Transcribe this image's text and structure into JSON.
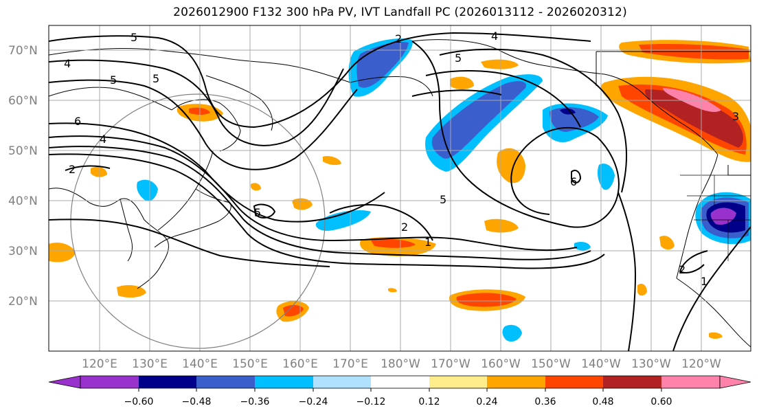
{
  "title": "2026012900 F132 300 hPa PV, IVT Landfall PC (2026013112 - 2026020312)",
  "colors": {
    "neg_060": "#9932cc",
    "neg_048": "#00008b",
    "neg_036": "#3a5fcd",
    "neg_024": "#00bfff",
    "neg_012": "#b0e2ff",
    "zero": "#ffffff",
    "pos_012": "#ffec8b",
    "pos_024": "#ffa500",
    "pos_036": "#ff4500",
    "pos_048": "#b22222",
    "pos_060": "#ff82ab",
    "contour": "#000000",
    "grid": "#a9a9a9",
    "coast": "#000000",
    "circle": "#808080"
  },
  "map": {
    "lat_labels": [
      "70°N",
      "60°N",
      "50°N",
      "40°N",
      "30°N",
      "20°N"
    ],
    "lon_labels": [
      "120°E",
      "130°E",
      "140°E",
      "150°E",
      "160°E",
      "170°E",
      "180°W",
      "170°W",
      "160°W",
      "150°W",
      "140°W",
      "130°W",
      "120°W"
    ]
  },
  "colorbar": {
    "ticks": [
      "−0.60",
      "−0.48",
      "−0.36",
      "−0.24",
      "−0.12",
      "0.12",
      "0.24",
      "0.36",
      "0.48",
      "0.60"
    ]
  },
  "contour_labels": [
    "2",
    "4",
    "5",
    "4",
    "5",
    "5",
    "6",
    "4",
    "2",
    "5",
    "5",
    "2",
    "1",
    "5",
    "6",
    "2",
    "1",
    "3"
  ]
}
